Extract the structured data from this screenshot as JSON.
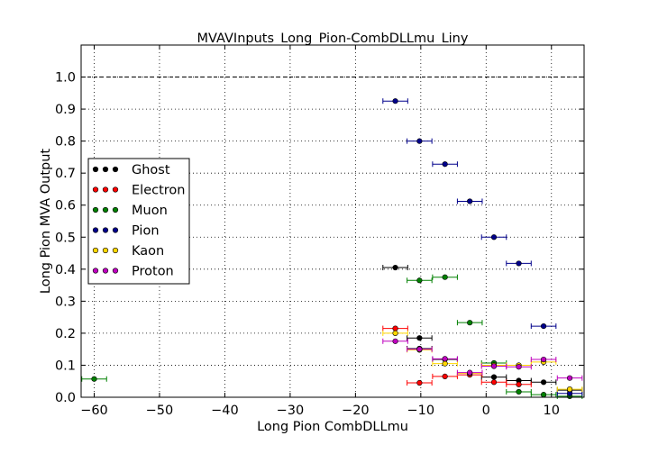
{
  "chart_data": {
    "type": "scatter",
    "title": "MVAVInputs_Long_Pion-CombDLLmu_Liny",
    "xlabel": "Long Pion CombDLLmu",
    "ylabel": "Long Pion MVA Output",
    "xlim": [
      -62,
      15
    ],
    "ylim": [
      0,
      1.1
    ],
    "x_ticks": [
      -60,
      -50,
      -40,
      -30,
      -20,
      -10,
      0,
      10
    ],
    "x_tick_labels": [
      "−60",
      "−50",
      "−40",
      "−30",
      "−20",
      "−10",
      "0",
      "10"
    ],
    "y_ticks": [
      0.0,
      0.1,
      0.2,
      0.3,
      0.4,
      0.5,
      0.6,
      0.7,
      0.8,
      0.9,
      1.0
    ],
    "y_tick_labels": [
      "0.0",
      "0.1",
      "0.2",
      "0.3",
      "0.4",
      "0.5",
      "0.6",
      "0.7",
      "0.8",
      "0.9",
      "1.0"
    ],
    "grid": true,
    "reference_line": {
      "y": 1.0,
      "style": "dashed",
      "color": "#000000"
    },
    "legend_position": "center-left",
    "series": [
      {
        "name": "Ghost",
        "color": "#000000",
        "points": [
          {
            "x": -13.9,
            "y": 0.405
          },
          {
            "x": -10.2,
            "y": 0.185
          },
          {
            "x": -10.2,
            "y": 0.152
          },
          {
            "x": -6.3,
            "y": 0.118
          },
          {
            "x": 1.2,
            "y": 0.063
          },
          {
            "x": 5.0,
            "y": 0.052
          },
          {
            "x": 8.8,
            "y": 0.047
          },
          {
            "x": 12.8,
            "y": 0.022
          }
        ]
      },
      {
        "name": "Electron",
        "color": "#ff0000",
        "points": [
          {
            "x": -13.9,
            "y": 0.215
          },
          {
            "x": -10.2,
            "y": 0.045
          },
          {
            "x": -6.3,
            "y": 0.065
          },
          {
            "x": -2.5,
            "y": 0.07
          },
          {
            "x": 1.2,
            "y": 0.047
          },
          {
            "x": 5.0,
            "y": 0.04
          }
        ]
      },
      {
        "name": "Muon",
        "color": "#008000",
        "points": [
          {
            "x": -60.0,
            "y": 0.057
          },
          {
            "x": -10.2,
            "y": 0.365
          },
          {
            "x": -6.3,
            "y": 0.375
          },
          {
            "x": -2.5,
            "y": 0.233
          },
          {
            "x": 1.2,
            "y": 0.107
          },
          {
            "x": 5.0,
            "y": 0.017
          },
          {
            "x": 8.8,
            "y": 0.008
          },
          {
            "x": 12.8,
            "y": 0.003
          }
        ]
      },
      {
        "name": "Pion",
        "color": "#00008b",
        "points": [
          {
            "x": -13.9,
            "y": 0.925
          },
          {
            "x": -10.2,
            "y": 0.8
          },
          {
            "x": -6.3,
            "y": 0.728
          },
          {
            "x": -2.5,
            "y": 0.612
          },
          {
            "x": 1.2,
            "y": 0.5
          },
          {
            "x": 5.0,
            "y": 0.418
          },
          {
            "x": 8.8,
            "y": 0.222
          },
          {
            "x": 12.8,
            "y": 0.012
          }
        ]
      },
      {
        "name": "Kaon",
        "color": "#ffd700",
        "points": [
          {
            "x": -13.9,
            "y": 0.2
          },
          {
            "x": -10.2,
            "y": 0.148
          },
          {
            "x": -6.3,
            "y": 0.105
          },
          {
            "x": -2.5,
            "y": 0.075
          },
          {
            "x": 1.2,
            "y": 0.1
          },
          {
            "x": 5.0,
            "y": 0.1
          },
          {
            "x": 8.8,
            "y": 0.11
          },
          {
            "x": 12.8,
            "y": 0.025
          }
        ]
      },
      {
        "name": "Proton",
        "color": "#bf00bf",
        "points": [
          {
            "x": -13.9,
            "y": 0.175
          },
          {
            "x": -10.2,
            "y": 0.15
          },
          {
            "x": -6.3,
            "y": 0.12
          },
          {
            "x": -2.5,
            "y": 0.077
          },
          {
            "x": 1.2,
            "y": 0.097
          },
          {
            "x": 5.0,
            "y": 0.095
          },
          {
            "x": 8.8,
            "y": 0.118
          },
          {
            "x": 12.8,
            "y": 0.06
          }
        ]
      }
    ]
  }
}
